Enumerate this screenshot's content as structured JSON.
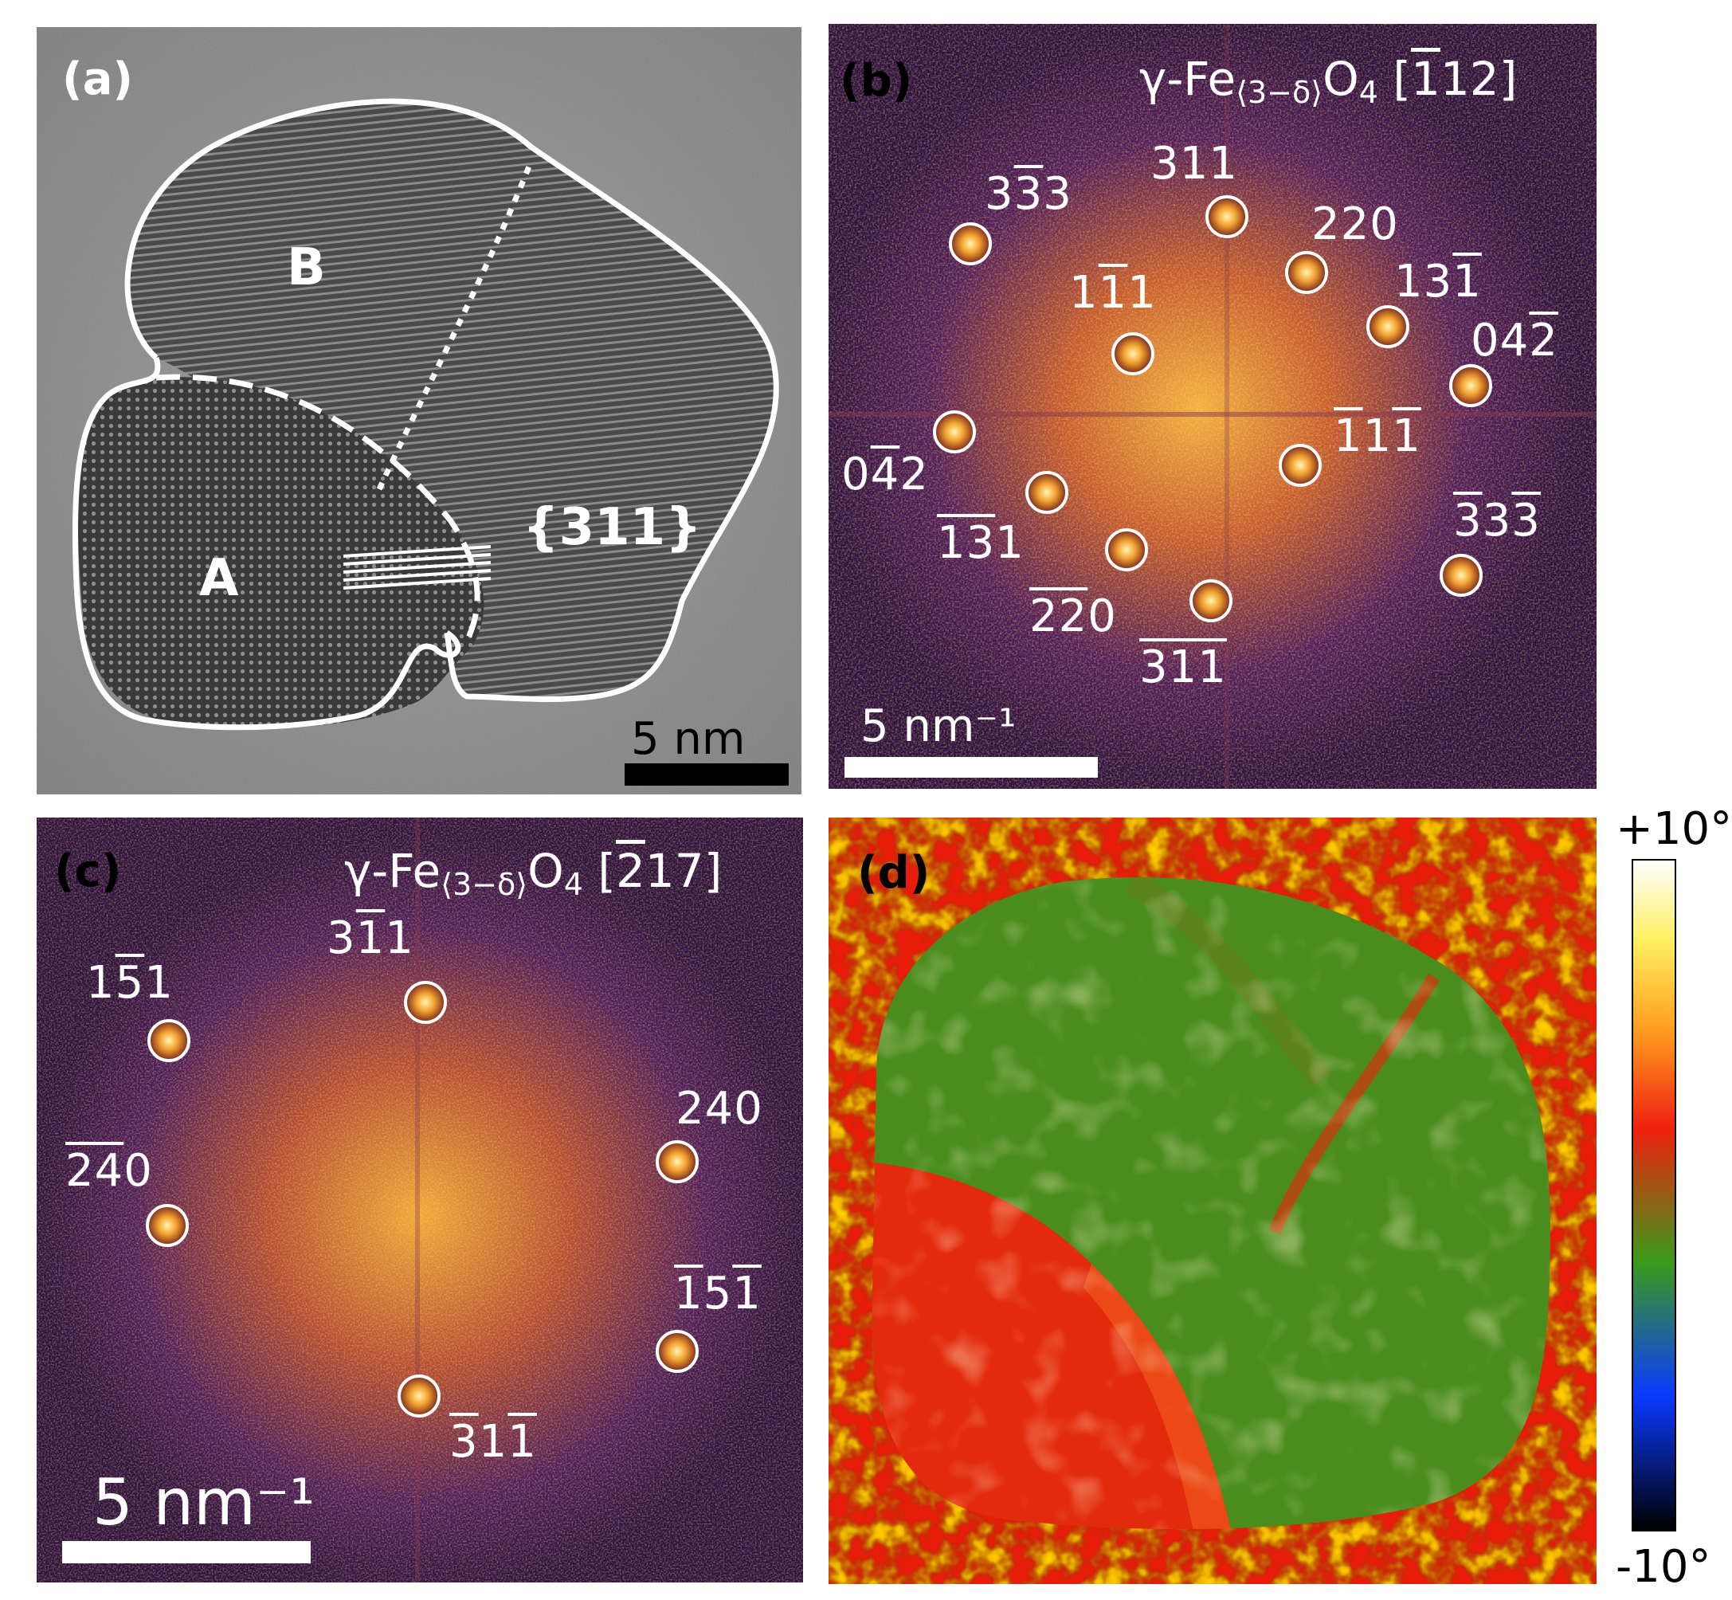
{
  "panel_a": {
    "letter": "(a)",
    "grain_a": "A",
    "grain_b": "B",
    "plane_family": "{311}",
    "scale_label": "5 nm"
  },
  "panel_b": {
    "letter": "(b)",
    "title_base": "γ-Fe",
    "title_sub": "⟨3−δ⟩",
    "title_o": "O",
    "title_o_sub": "4",
    "title_zone_open": " [",
    "title_zone_ov": "1",
    "title_zone_rest": "12]",
    "scale_label": "5 nm⁻¹",
    "spots": {
      "s1": [
        "3",
        "3",
        "3"
      ],
      "s2": [
        "3",
        "1",
        "1"
      ],
      "s3": [
        "2",
        "2",
        "0"
      ],
      "s4": [
        "1",
        "1",
        "1"
      ],
      "s5": [
        "1",
        "3",
        "1"
      ],
      "s6": [
        "0",
        "4",
        "2"
      ],
      "s7": [
        "0",
        "4",
        "2"
      ],
      "s8": [
        "1",
        "1",
        "1"
      ],
      "s9": [
        "1",
        "3",
        "1"
      ],
      "s10": [
        "3",
        "3",
        "3"
      ],
      "s11": [
        "2",
        "2",
        "0"
      ],
      "s12": [
        "3",
        "1",
        "1"
      ]
    }
  },
  "panel_c": {
    "letter": "(c)",
    "title_base": "γ-Fe",
    "title_sub": "⟨3−δ⟩",
    "title_o": "O",
    "title_o_sub": "4",
    "title_zone_open": " [",
    "title_zone_ov": "2",
    "title_zone_rest": "17]",
    "scale_label": "5 nm⁻¹",
    "spots": {
      "s1": [
        "1",
        "5",
        "1"
      ],
      "s2": [
        "3",
        "1",
        "1"
      ],
      "s3": [
        "2",
        "4",
        "0"
      ],
      "s4": [
        "2",
        "4",
        "0"
      ],
      "s5": [
        "1",
        "5",
        "1"
      ],
      "s6": [
        "3",
        "1",
        "1"
      ]
    }
  },
  "panel_d": {
    "letter": "(d)",
    "colorbar_max": "+10°",
    "colorbar_min": "-10°"
  },
  "colors": {
    "fft_bg": "#2a0f40",
    "fft_glow": "#f09a2a",
    "map_green": "#3f8f1a",
    "map_red": "#e81c0a",
    "outline": "#ffffff"
  }
}
